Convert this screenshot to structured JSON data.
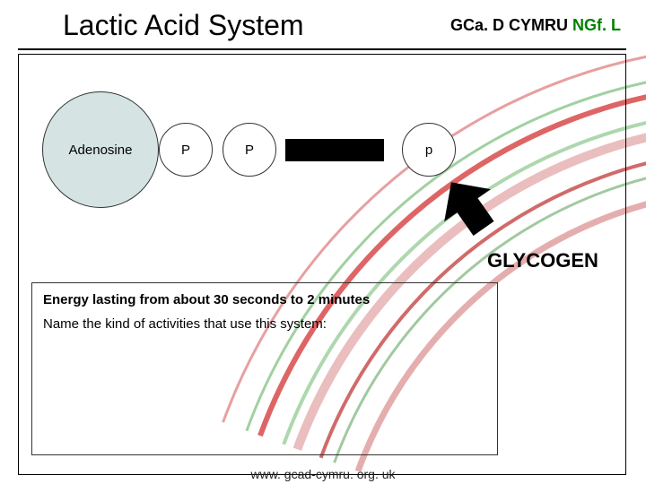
{
  "title": "Lactic Acid System",
  "header": {
    "part1": "GCa. D CYMRU ",
    "part2": "NGf. L"
  },
  "molecule": {
    "adenosine": "Adenosine",
    "p1": "P",
    "p2": "P",
    "p3": "p"
  },
  "glycogen": "GLYCOGEN",
  "textbox": {
    "line1": "Energy lasting from about 30 seconds to 2 minutes",
    "line2": "Name the kind of activities that use this system:"
  },
  "footer": "www. gcad-cymru. org. uk",
  "arcs": {
    "strokes": [
      {
        "color": "#e38f8f",
        "width": 3
      },
      {
        "color": "#8fc98f",
        "width": 3
      },
      {
        "color": "#d84a4a",
        "width": 6
      },
      {
        "color": "#a0d0a0",
        "width": 4
      },
      {
        "color": "#e6b3b3",
        "width": 10
      },
      {
        "color": "#c95050",
        "width": 4
      },
      {
        "color": "#90c090",
        "width": 3
      },
      {
        "color": "#e0a0a0",
        "width": 7
      }
    ]
  },
  "arrow": {
    "rotation_deg": -35,
    "fill": "#000000"
  }
}
